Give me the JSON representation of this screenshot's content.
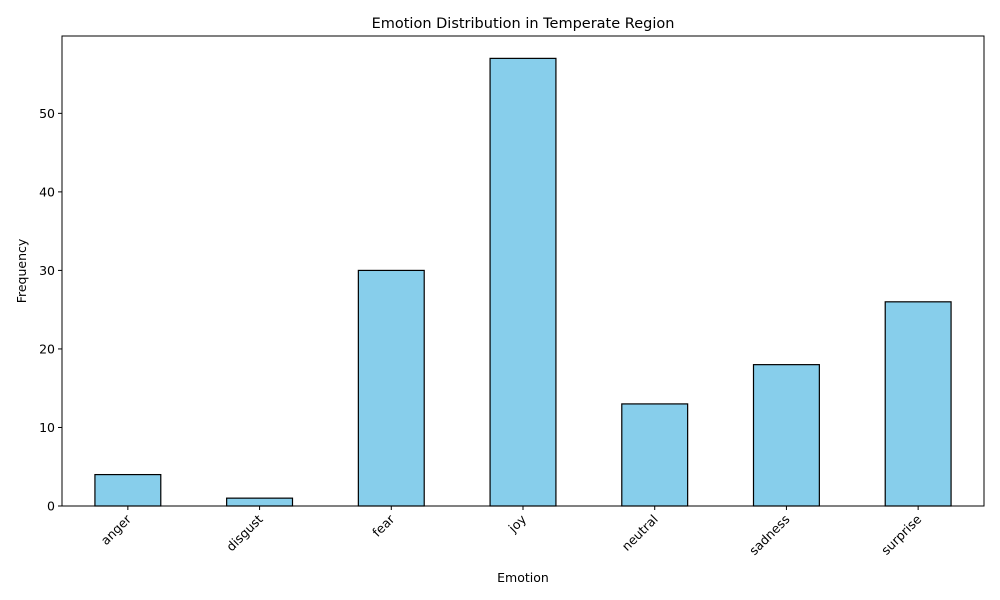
{
  "chart_data": {
    "type": "bar",
    "title": "Emotion Distribution in Temperate Region",
    "xlabel": "Emotion",
    "ylabel": "Frequency",
    "categories": [
      "anger",
      "disgust",
      "fear",
      "joy",
      "neutral",
      "sadness",
      "surprise"
    ],
    "values": [
      4,
      1,
      30,
      57,
      13,
      18,
      26
    ],
    "ylim": [
      0,
      59.85
    ],
    "yticks": [
      0,
      10,
      20,
      30,
      40,
      50
    ],
    "bar_color": "#87ceeb",
    "edge_color": "#000000",
    "grid": false,
    "legend": "none"
  }
}
